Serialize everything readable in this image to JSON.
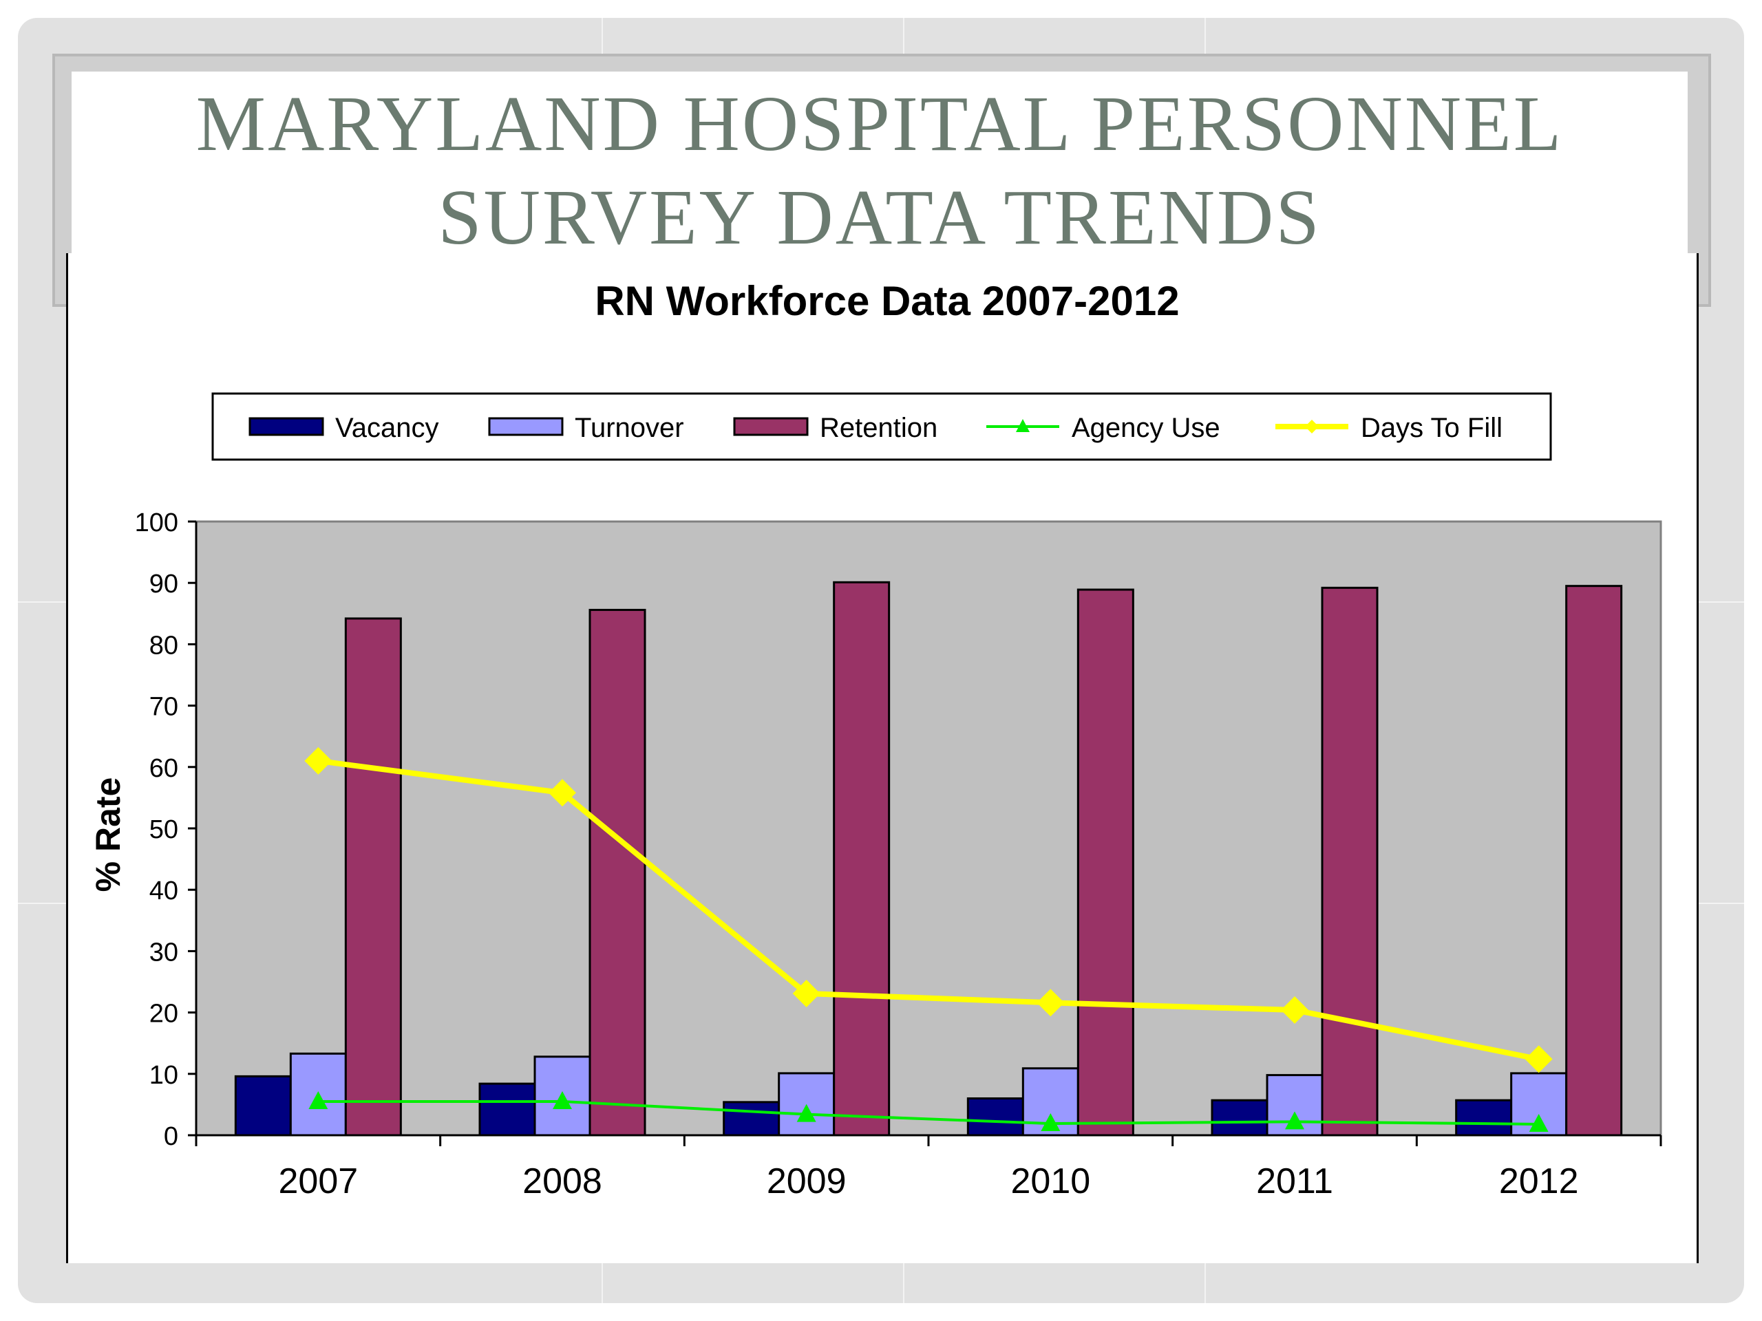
{
  "slide": {
    "title_line1": "Maryland Hospital Personnel",
    "title_line2": "Survey Data Trends"
  },
  "colors": {
    "title_text": "#6b7b70",
    "plot_background": "#c0c0c0",
    "vacancy": "#000080",
    "turnover": "#9999ff",
    "retention": "#993366",
    "agency_use": "#00ee00",
    "days_to_fill": "#ffff00"
  },
  "chart_data": {
    "type": "bar",
    "title": "RN Workforce Data 2007-2012",
    "xlabel": "",
    "ylabel": "% Rate",
    "categories": [
      "2007",
      "2008",
      "2009",
      "2010",
      "2011",
      "2012"
    ],
    "ylim": [
      0,
      100
    ],
    "yticks": [
      "0",
      "10",
      "20",
      "30",
      "40",
      "50",
      "60",
      "70",
      "80",
      "90",
      "100"
    ],
    "grid": false,
    "legend_position": "top",
    "series": [
      {
        "name": "Vacancy",
        "type": "bar",
        "color": "#000080",
        "values": [
          9.6,
          8.4,
          5.4,
          6.0,
          5.7,
          5.7
        ]
      },
      {
        "name": "Turnover",
        "type": "bar",
        "color": "#9999ff",
        "values": [
          13.3,
          12.8,
          10.1,
          10.9,
          9.8,
          10.1
        ]
      },
      {
        "name": "Retention",
        "type": "bar",
        "color": "#993366",
        "values": [
          84.2,
          85.6,
          90.1,
          88.9,
          89.2,
          89.5
        ]
      },
      {
        "name": "Agency Use",
        "type": "line",
        "marker": "triangle",
        "color": "#00ee00",
        "values": [
          5.5,
          5.5,
          3.4,
          1.9,
          2.2,
          1.8
        ]
      },
      {
        "name": "Days To Fill",
        "type": "line",
        "marker": "diamond",
        "color": "#ffff00",
        "values": [
          61.0,
          55.8,
          23.1,
          21.6,
          20.4,
          12.4
        ]
      }
    ]
  }
}
